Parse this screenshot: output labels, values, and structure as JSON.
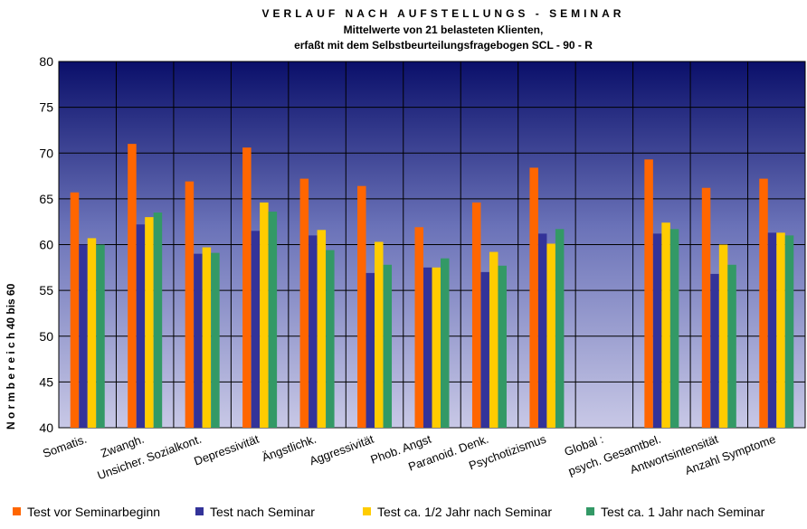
{
  "chart_data": {
    "type": "bar",
    "title": "VERLAUF NACH AUFSTELLUNGS - SEMINAR",
    "subtitle": [
      "Mittelwerte von 21 belasteten Klienten,",
      "erfaßt mit dem Selbstbeurteilungsfragebogen  SCL - 90 - R"
    ],
    "y_label": "N o r m b e r e i c h   40 bis 60",
    "categories": [
      "Somatis.",
      "Zwangh.",
      "Unsicher. Sozialkont.",
      "Depressivität",
      "Ängstlichk.",
      "Aggressivität",
      "Phob. Angst",
      "Paranoid. Denk.",
      "Psychotizismus",
      "Global :",
      "psych. Gesamtbel.",
      "Antwortsintensität",
      "Anzahl Symptome"
    ],
    "series": [
      {
        "name": "Test vor Seminarbeginn",
        "color": "#ff6600",
        "values": [
          65.7,
          71,
          66.9,
          70.6,
          67.2,
          66.4,
          61.9,
          64.6,
          68.4,
          null,
          69.3,
          66.2,
          67.2
        ]
      },
      {
        "name": "Test nach Seminar",
        "color": "#333399",
        "values": [
          60,
          62.2,
          59,
          61.5,
          61,
          56.9,
          57.5,
          57,
          61.2,
          null,
          61.2,
          56.8,
          61.3
        ]
      },
      {
        "name": "Test  ca. 1/2 Jahr nach Seminar",
        "color": "#ffcc00",
        "values": [
          60.7,
          63,
          59.7,
          64.6,
          61.6,
          60.3,
          57.5,
          59.2,
          60.1,
          null,
          62.4,
          60,
          61.3
        ]
      },
      {
        "name": "Test  ca. 1  Jahr nach Seminar",
        "color": "#339966",
        "values": [
          60,
          63.5,
          59.1,
          63.6,
          59.4,
          57.8,
          58.5,
          57.7,
          61.7,
          null,
          61.7,
          57.8,
          61
        ]
      }
    ],
    "ylim": [
      40,
      80
    ],
    "yticks": [
      40,
      45,
      50,
      55,
      60,
      65,
      70,
      75,
      80
    ],
    "grid": true,
    "legend": "bottom"
  }
}
